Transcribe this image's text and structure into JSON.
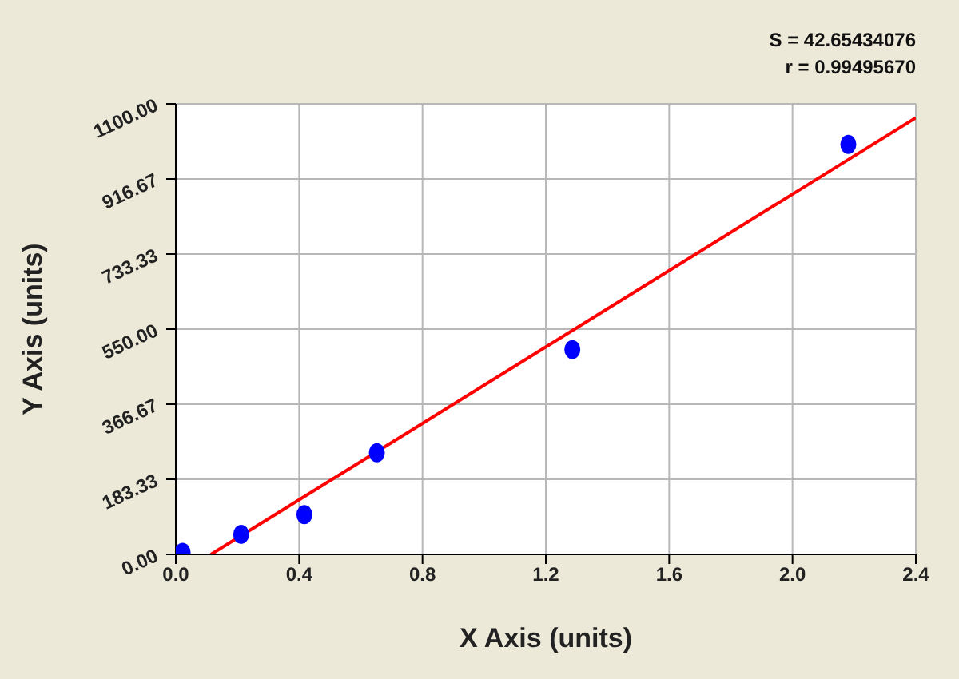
{
  "chart_data": {
    "type": "scatter",
    "xlabel": "X Axis (units)",
    "ylabel": "Y Axis (units)",
    "annotations": [
      "S = 42.65434076",
      "r = 0.99495670"
    ],
    "x": [
      0.022,
      0.212,
      0.417,
      0.652,
      1.286,
      2.181
    ],
    "series": [
      {
        "color": "#0000ff",
        "marker": "circle",
        "values": [
          5,
          49,
          97,
          248,
          500,
          1001
        ]
      },
      {
        "type": "line",
        "color": "#ff0000",
        "x": [
          0.114,
          2.4
        ],
        "values": [
          0,
          1066
        ]
      }
    ],
    "xlim": [
      0,
      2.4
    ],
    "xticks": [
      {
        "value": 0,
        "label": "0.0"
      },
      {
        "value": 0.4,
        "label": "0.4"
      },
      {
        "value": 0.8,
        "label": "0.8"
      },
      {
        "value": 1.2,
        "label": "1.2"
      },
      {
        "value": 1.6,
        "label": "1.6"
      },
      {
        "value": 2.0,
        "label": "2.0"
      },
      {
        "value": 2.4,
        "label": "2.4"
      }
    ],
    "ylim": [
      0,
      1100
    ],
    "yticks": [
      {
        "value": 0,
        "label": "0.00"
      },
      183.33,
      366.67,
      {
        "value": 550,
        "label": "550.00"
      },
      733.33,
      916.67,
      {
        "value": 1100,
        "label": "1100.00"
      }
    ],
    "grid": true
  }
}
